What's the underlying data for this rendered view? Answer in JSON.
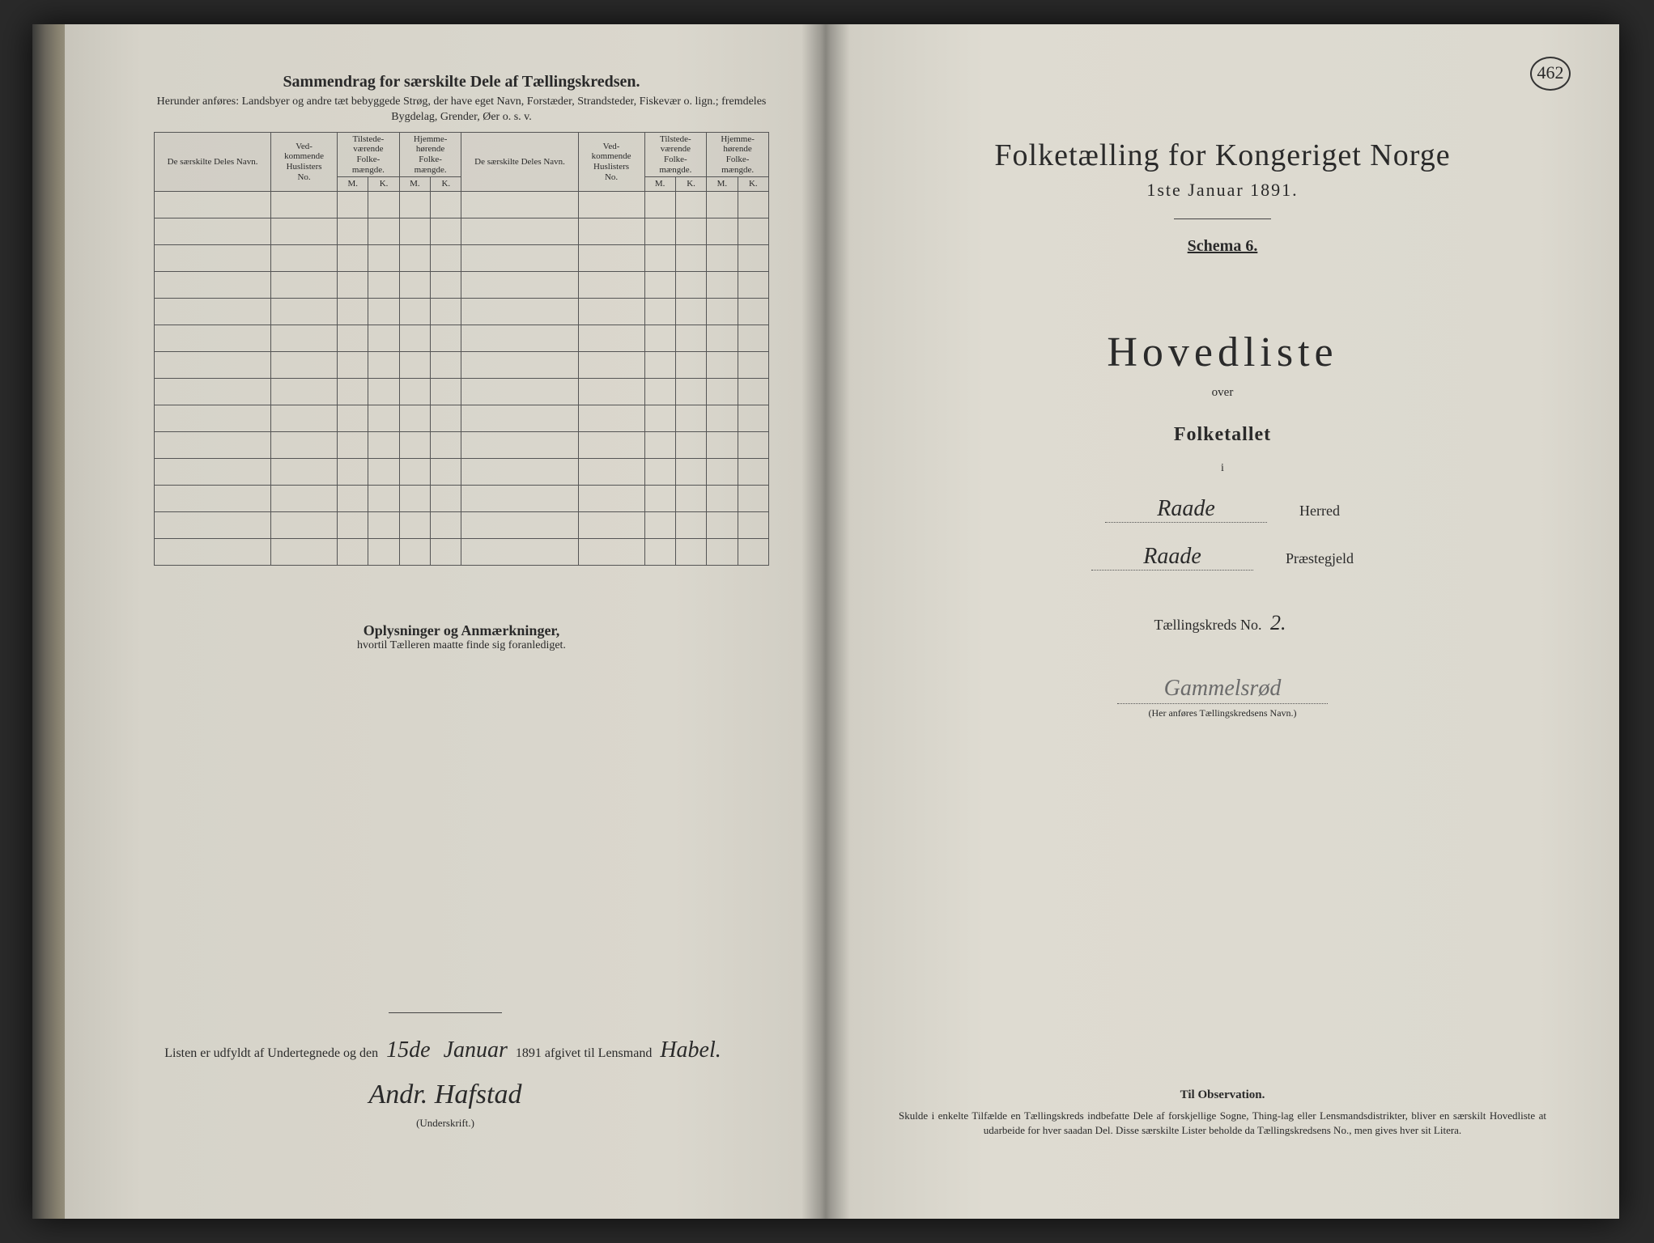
{
  "meta": {
    "page_number_circled": "462",
    "background_color": "#dad7cd",
    "ink_color": "#2a2a2a"
  },
  "left_page": {
    "summary_title": "Sammendrag for særskilte Dele af Tællingskredsen.",
    "summary_sub": "Herunder anføres: Landsbyer og andre tæt bebyggede Strøg, der have eget Navn, Forstæder, Strandsteder, Fiskevær o. lign.; fremdeles Bygdelag, Grender, Øer o. s. v.",
    "table": {
      "col_navn": "De særskilte Deles Navn.",
      "col_huslister": "Ved-\nkommende\nHuslisters\nNo.",
      "col_tilstede": "Tilstede-\nværende\nFolke-\nmængde.",
      "col_hjemme": "Hjemme-\nhørende\nFolke-\nmængde.",
      "sub_m": "M.",
      "sub_k": "K.",
      "blank_rows": 14
    },
    "oplys_title": "Oplysninger og Anmærkninger,",
    "oplys_sub": "hvortil Tælleren maatte finde sig foranlediget.",
    "signature": {
      "line_prefix": "Listen er udfyldt af Undertegnede og den ",
      "hand_day": "15de",
      "hand_month": "Januar",
      "year_text": " 1891 afgivet til Lensmand ",
      "hand_lensmand": "Habel.",
      "hand_sign": "Andr. Hafstad",
      "underskrift_label": "(Underskrift.)"
    }
  },
  "right_page": {
    "census_title": "Folketælling for Kongeriget Norge",
    "census_date": "1ste Januar 1891.",
    "schema": "Schema 6.",
    "hovedliste": "Hovedliste",
    "over": "over",
    "folketallet": "Folketallet",
    "i": "i",
    "herred_hand": "Raade",
    "herred_label": "Herred",
    "praestegjeld_hand": "Raade",
    "praestegjeld_label": "Præstegjeld",
    "tkreds_label": "Tællingskreds No. ",
    "tkreds_hand": "2.",
    "kredsnavn_hand": "Gammelsrød",
    "kredsnavn_caption": "(Her anføres Tællingskredsens Navn.)",
    "observation": {
      "title": "Til Observation.",
      "body": "Skulde i enkelte Tilfælde en Tællingskreds indbefatte Dele af forskjellige Sogne, Thing-lag eller Lensmandsdistrikter, bliver en særskilt Hovedliste at udarbeide for hver saadan Del. Disse særskilte Lister beholde da Tællingskredsens No., men gives hver sit Litera."
    }
  }
}
